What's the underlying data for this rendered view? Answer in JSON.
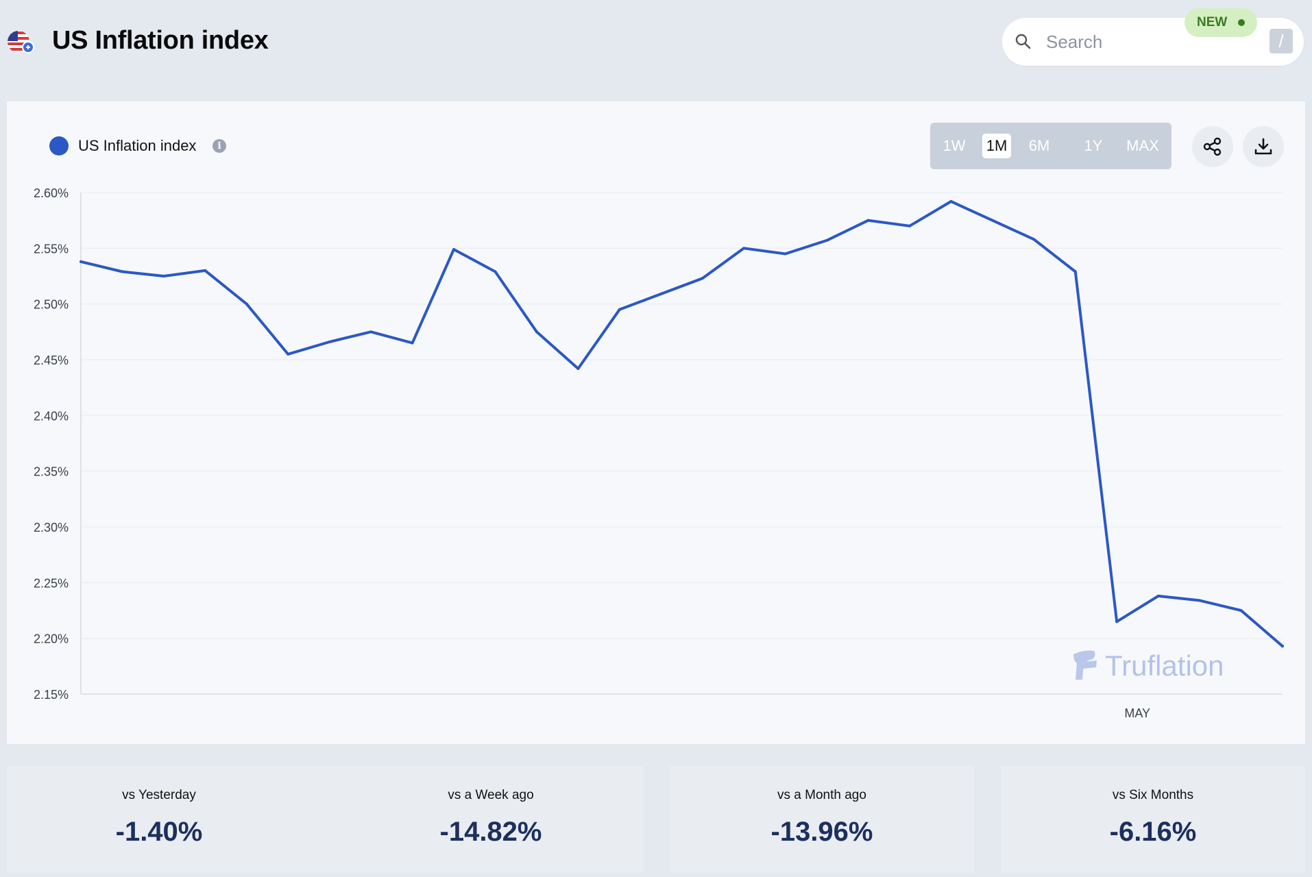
{
  "header": {
    "title": "US Inflation index",
    "search_placeholder": "Search",
    "search_shortcut": "/",
    "new_badge": "NEW",
    "flag_icon": "us-flag-icon"
  },
  "legend": {
    "series_name": "US Inflation index",
    "color": "#2b58c5",
    "info_icon": "info-icon"
  },
  "ranges": {
    "items": [
      "1W",
      "1M",
      "6M",
      "1Y",
      "MAX"
    ],
    "active": "1M"
  },
  "actions": {
    "share_icon": "share-icon",
    "download_icon": "download-icon"
  },
  "watermark": "Truflation",
  "chart_data": {
    "type": "line",
    "series": [
      {
        "name": "US Inflation index",
        "color": "#2b58c5",
        "values": [
          2.538,
          2.529,
          2.525,
          2.53,
          2.5,
          2.455,
          2.466,
          2.475,
          2.465,
          2.549,
          2.529,
          2.475,
          2.442,
          2.495,
          2.509,
          2.523,
          2.55,
          2.545,
          2.557,
          2.575,
          2.57,
          2.592,
          2.575,
          2.558,
          2.529,
          2.215,
          2.238,
          2.234,
          2.225,
          2.193
        ]
      }
    ],
    "ylim": [
      2.15,
      2.6
    ],
    "yticks": [
      "2.60%",
      "2.55%",
      "2.50%",
      "2.45%",
      "2.40%",
      "2.35%",
      "2.30%",
      "2.25%",
      "2.20%",
      "2.15%"
    ],
    "xtick_labels": [
      {
        "label": "MAY",
        "index": 25
      }
    ],
    "grid": true,
    "legend_position": "top-left"
  },
  "stats": [
    {
      "label": "vs Yesterday",
      "value": "-1.40%"
    },
    {
      "label": "vs a Week ago",
      "value": "-14.82%"
    },
    {
      "label": "vs a Month ago",
      "value": "-13.96%"
    },
    {
      "label": "vs Six Months",
      "value": "-6.16%"
    }
  ]
}
